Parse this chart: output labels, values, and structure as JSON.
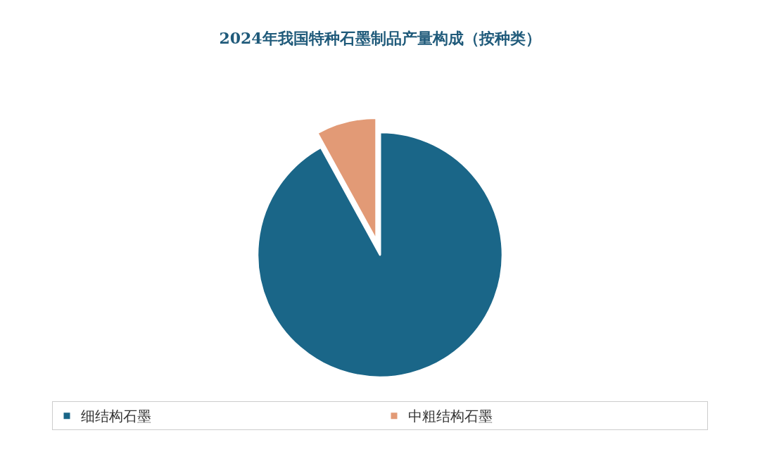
{
  "chart_data": {
    "type": "pie",
    "title": "2024年我国特种石墨制品产量构成（按种类）",
    "categories": [
      "细结构石墨",
      "中粗结构石墨"
    ],
    "values": [
      92,
      8
    ],
    "colors": [
      "#1a6688",
      "#e29a76"
    ],
    "legend": "bottom"
  }
}
